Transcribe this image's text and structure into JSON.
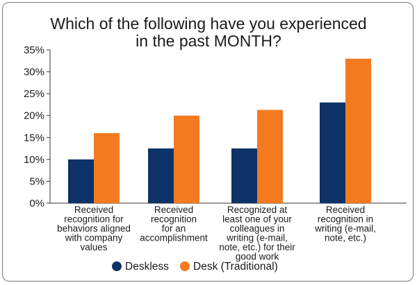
{
  "chart_data": {
    "type": "bar",
    "title_lines": [
      "Which of the following have you experienced",
      "in the past MONTH?"
    ],
    "categories": [
      [
        "Received",
        "recognition for",
        "behaviors aligned",
        "with company",
        "values"
      ],
      [
        "Received",
        "recognition",
        "for an",
        "accomplishment"
      ],
      [
        "Recognized at",
        "least one of your",
        "colleagues in",
        "writing (e-mail,",
        "note, etc.) for their",
        "good work"
      ],
      [
        "Received",
        "recognition in",
        "writing (e-mail,",
        "note, etc.)"
      ]
    ],
    "series": [
      {
        "name": "Deskless",
        "color": "#0d3268",
        "values": [
          10,
          12.5,
          12.5,
          23
        ]
      },
      {
        "name": "Desk (Traditional)",
        "color": "#f47a20",
        "values": [
          16,
          20,
          21.3,
          33
        ]
      }
    ],
    "yticks": [
      "0%",
      "5%",
      "10%",
      "15%",
      "20%",
      "25%",
      "30%",
      "35%"
    ],
    "ylim": [
      0,
      35
    ],
    "grid": false,
    "legend_position": "bottom"
  }
}
